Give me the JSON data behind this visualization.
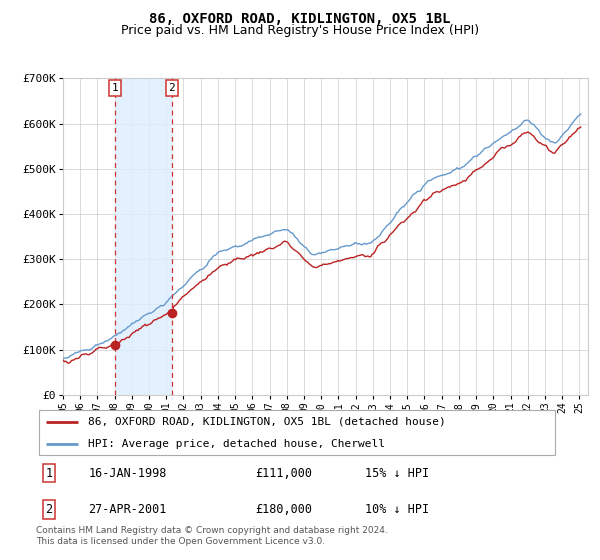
{
  "title": "86, OXFORD ROAD, KIDLINGTON, OX5 1BL",
  "subtitle": "Price paid vs. HM Land Registry's House Price Index (HPI)",
  "ylim": [
    0,
    700000
  ],
  "yticks": [
    0,
    100000,
    200000,
    300000,
    400000,
    500000,
    600000,
    700000
  ],
  "ytick_labels": [
    "£0",
    "£100K",
    "£200K",
    "£300K",
    "£400K",
    "£500K",
    "£600K",
    "£700K"
  ],
  "hpi_color": "#6699cc",
  "price_color": "#bb2222",
  "vline_color": "#cc3333",
  "shade_color": "#ddeeff",
  "sale1_date_x": 1998.04,
  "sale1_price": 111000,
  "sale2_date_x": 2001.32,
  "sale2_price": 180000,
  "legend_line1": "86, OXFORD ROAD, KIDLINGTON, OX5 1BL (detached house)",
  "legend_line2": "HPI: Average price, detached house, Cherwell",
  "table_row1": [
    "1",
    "16-JAN-1998",
    "£111,000",
    "15% ↓ HPI"
  ],
  "table_row2": [
    "2",
    "27-APR-2001",
    "£180,000",
    "10% ↓ HPI"
  ],
  "footnote": "Contains HM Land Registry data © Crown copyright and database right 2024.\nThis data is licensed under the Open Government Licence v3.0.",
  "title_fontsize": 10,
  "subtitle_fontsize": 9,
  "background_color": "#ffffff",
  "grid_color": "#cccccc",
  "xmin": 1995,
  "xmax": 2025.5
}
